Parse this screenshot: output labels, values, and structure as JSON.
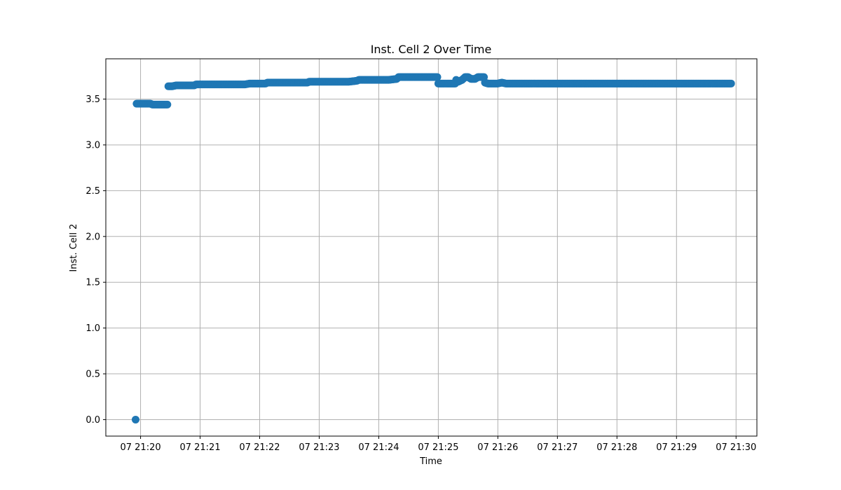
{
  "chart_data": {
    "type": "scatter",
    "title": "Inst. Cell 2 Over Time",
    "xlabel": "Time",
    "ylabel": "Inst. Cell 2",
    "x_ticks": [
      {
        "time": "21:20",
        "label": "07 21:20"
      },
      {
        "time": "21:21",
        "label": "07 21:21"
      },
      {
        "time": "21:22",
        "label": "07 21:22"
      },
      {
        "time": "21:23",
        "label": "07 21:23"
      },
      {
        "time": "21:24",
        "label": "07 21:24"
      },
      {
        "time": "21:25",
        "label": "07 21:25"
      },
      {
        "time": "21:26",
        "label": "07 21:26"
      },
      {
        "time": "21:27",
        "label": "07 21:27"
      },
      {
        "time": "21:28",
        "label": "07 21:28"
      },
      {
        "time": "21:29",
        "label": "07 21:29"
      },
      {
        "time": "21:30",
        "label": "07 21:30"
      }
    ],
    "y_ticks": [
      "0.0",
      "0.5",
      "1.0",
      "1.5",
      "2.0",
      "2.5",
      "3.0",
      "3.5"
    ],
    "xlim": [
      "21:19:25",
      "21:30:21"
    ],
    "ylim": [
      -0.18,
      3.94
    ],
    "grid": true,
    "marker_color": "#1f77b4",
    "series": [
      {
        "points": [
          [
            "21:19:55",
            0.0
          ],
          [
            "21:19:56",
            3.45
          ],
          [
            "21:20:00",
            3.45
          ],
          [
            "21:20:05",
            3.45
          ],
          [
            "21:20:10",
            3.45
          ],
          [
            "21:20:12",
            3.44
          ],
          [
            "21:20:16",
            3.44
          ],
          [
            "21:20:20",
            3.44
          ],
          [
            "21:20:24",
            3.44
          ],
          [
            "21:20:27",
            3.44
          ],
          [
            "21:20:28",
            3.64
          ],
          [
            "21:20:32",
            3.64
          ],
          [
            "21:20:36",
            3.65
          ],
          [
            "21:20:42",
            3.65
          ],
          [
            "21:20:48",
            3.65
          ],
          [
            "21:20:54",
            3.65
          ],
          [
            "21:20:56",
            3.66
          ],
          [
            "21:21:05",
            3.66
          ],
          [
            "21:21:15",
            3.66
          ],
          [
            "21:21:25",
            3.66
          ],
          [
            "21:21:35",
            3.66
          ],
          [
            "21:21:45",
            3.66
          ],
          [
            "21:21:50",
            3.67
          ],
          [
            "21:21:58",
            3.67
          ],
          [
            "21:22:06",
            3.67
          ],
          [
            "21:22:08",
            3.68
          ],
          [
            "21:22:18",
            3.68
          ],
          [
            "21:22:28",
            3.68
          ],
          [
            "21:22:38",
            3.68
          ],
          [
            "21:22:48",
            3.68
          ],
          [
            "21:22:50",
            3.69
          ],
          [
            "21:23:00",
            3.69
          ],
          [
            "21:23:10",
            3.69
          ],
          [
            "21:23:20",
            3.69
          ],
          [
            "21:23:30",
            3.69
          ],
          [
            "21:23:38",
            3.7
          ],
          [
            "21:23:40",
            3.71
          ],
          [
            "21:23:50",
            3.71
          ],
          [
            "21:24:00",
            3.71
          ],
          [
            "21:24:10",
            3.71
          ],
          [
            "21:24:18",
            3.72
          ],
          [
            "21:24:20",
            3.74
          ],
          [
            "21:24:30",
            3.74
          ],
          [
            "21:24:40",
            3.74
          ],
          [
            "21:24:50",
            3.74
          ],
          [
            "21:24:58",
            3.74
          ],
          [
            "21:25:00",
            3.67
          ],
          [
            "21:25:06",
            3.67
          ],
          [
            "21:25:12",
            3.67
          ],
          [
            "21:25:16",
            3.67
          ],
          [
            "21:25:18",
            3.71
          ],
          [
            "21:25:20",
            3.69
          ],
          [
            "21:25:24",
            3.71
          ],
          [
            "21:25:27",
            3.74
          ],
          [
            "21:25:30",
            3.74
          ],
          [
            "21:25:33",
            3.72
          ],
          [
            "21:25:37",
            3.72
          ],
          [
            "21:25:40",
            3.74
          ],
          [
            "21:25:44",
            3.74
          ],
          [
            "21:25:47",
            3.68
          ],
          [
            "21:25:50",
            3.67
          ],
          [
            "21:25:55",
            3.67
          ],
          [
            "21:26:00",
            3.67
          ],
          [
            "21:26:04",
            3.68
          ],
          [
            "21:26:08",
            3.67
          ],
          [
            "21:26:20",
            3.67
          ],
          [
            "21:26:40",
            3.67
          ],
          [
            "21:27:00",
            3.67
          ],
          [
            "21:27:20",
            3.67
          ],
          [
            "21:27:40",
            3.67
          ],
          [
            "21:28:00",
            3.67
          ],
          [
            "21:28:20",
            3.67
          ],
          [
            "21:28:40",
            3.67
          ],
          [
            "21:29:00",
            3.67
          ],
          [
            "21:29:20",
            3.67
          ],
          [
            "21:29:40",
            3.67
          ],
          [
            "21:29:55",
            3.67
          ]
        ]
      }
    ]
  }
}
